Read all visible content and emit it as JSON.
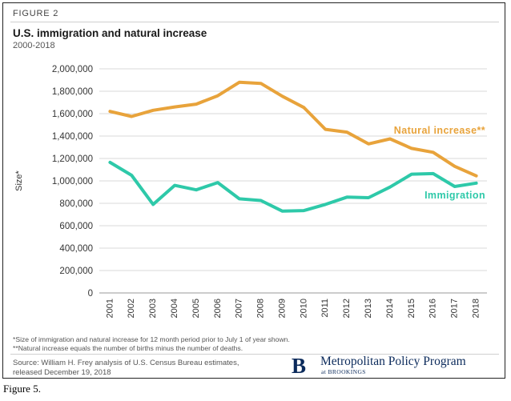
{
  "figure_label": "FIGURE 2",
  "title": "U.S. immigration and natural increase",
  "subtitle": "2000-2018",
  "notes": [
    "*Size of immigration and natural increase for 12 month period prior to July 1 of year shown.",
    "**Natural increase equals the number of births minus the number of deaths."
  ],
  "source": "Source: William H. Frey analysis of U.S. Census Bureau estimates, released December 19, 2018",
  "logo": {
    "letter": "B",
    "name": "Metropolitan Policy Program",
    "at": "at BROOKINGS",
    "color": "#0b2a5b"
  },
  "caption": "Figure 5.",
  "chart_data": {
    "type": "line",
    "ylabel": "Size*",
    "xlabel": "",
    "ylim": [
      0,
      2000000
    ],
    "yticks": [
      0,
      200000,
      400000,
      600000,
      800000,
      1000000,
      1200000,
      1400000,
      1600000,
      1800000,
      2000000
    ],
    "ytick_labels": [
      "0",
      "200,000",
      "400,000",
      "600,000",
      "800,000",
      "1,000,000",
      "1,200,000",
      "1,400,000",
      "1,600,000",
      "1,800,000",
      "2,000,000"
    ],
    "x": [
      "2001",
      "2002",
      "2003",
      "2004",
      "2005",
      "2006",
      "2007",
      "2008",
      "2009",
      "2010",
      "2011",
      "2012",
      "2013",
      "2014",
      "2015",
      "2016",
      "2017",
      "2018"
    ],
    "grid": "horizontal",
    "series": [
      {
        "name": "Natural increase**",
        "color": "#e8a33b",
        "values": [
          1620000,
          1575000,
          1630000,
          1660000,
          1685000,
          1760000,
          1880000,
          1870000,
          1755000,
          1655000,
          1460000,
          1435000,
          1330000,
          1375000,
          1290000,
          1255000,
          1130000,
          1045000
        ]
      },
      {
        "name": "Immigration",
        "color": "#2ec9a9",
        "values": [
          1165000,
          1050000,
          790000,
          960000,
          920000,
          985000,
          840000,
          825000,
          730000,
          735000,
          790000,
          855000,
          850000,
          945000,
          1060000,
          1065000,
          950000,
          980000
        ]
      }
    ]
  }
}
